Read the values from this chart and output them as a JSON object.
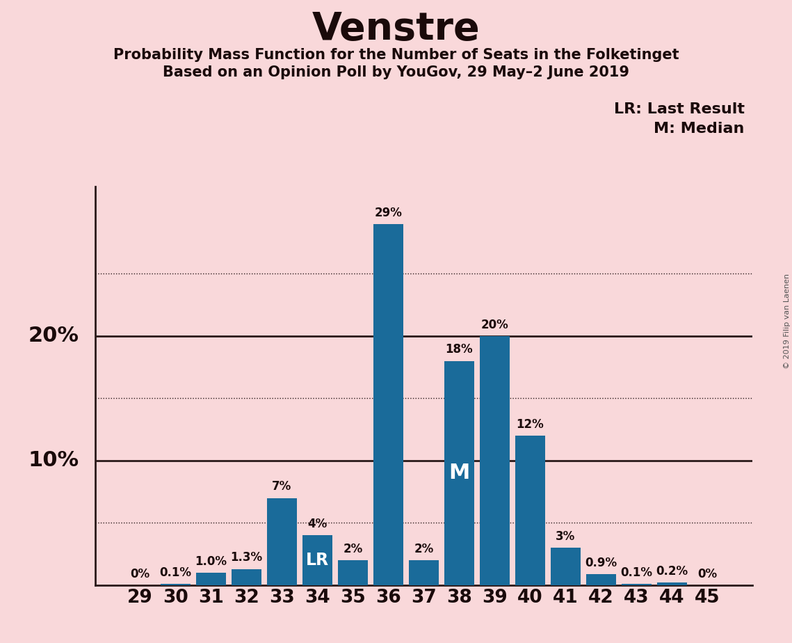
{
  "title": "Venstre",
  "subtitle1": "Probability Mass Function for the Number of Seats in the Folketinget",
  "subtitle2": "Based on an Opinion Poll by YouGov, 29 May–2 June 2019",
  "categories": [
    29,
    30,
    31,
    32,
    33,
    34,
    35,
    36,
    37,
    38,
    39,
    40,
    41,
    42,
    43,
    44,
    45
  ],
  "values": [
    0.0,
    0.1,
    1.0,
    1.3,
    7.0,
    4.0,
    2.0,
    29.0,
    2.0,
    18.0,
    20.0,
    12.0,
    3.0,
    0.9,
    0.1,
    0.2,
    0.0
  ],
  "labels": [
    "0%",
    "0.1%",
    "1.0%",
    "1.3%",
    "7%",
    "4%",
    "2%",
    "29%",
    "2%",
    "18%",
    "20%",
    "12%",
    "3%",
    "0.9%",
    "0.1%",
    "0.2%",
    "0%"
  ],
  "bar_color": "#1a6b9a",
  "background_color": "#f9d8da",
  "text_color": "#1a0a0a",
  "bar_text_color_dark": "#1a0a0a",
  "bar_text_color_light": "#ffffff",
  "legend_line1": "LR: Last Result",
  "legend_line2": "M: Median",
  "lr_bar": 34,
  "median_bar": 38,
  "ylim": [
    0,
    32
  ],
  "copyright_text": "© 2019 Filip van Laenen",
  "dotted_lines": [
    5,
    15,
    25
  ],
  "solid_lines": [
    10,
    20
  ],
  "ylabel_10": "10%",
  "ylabel_20": "20%"
}
